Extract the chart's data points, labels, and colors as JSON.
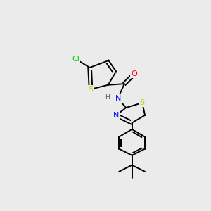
{
  "background_color": "#ebebeb",
  "atom_colors": {
    "S": "#cccc00",
    "N": "#0000ff",
    "O": "#ff0000",
    "Cl": "#00cc00",
    "C": "#000000",
    "H": "#555555"
  },
  "bond_color": "#000000",
  "bond_width": 1.4,
  "xlim": [
    0,
    10
  ],
  "ylim": [
    0,
    10
  ]
}
